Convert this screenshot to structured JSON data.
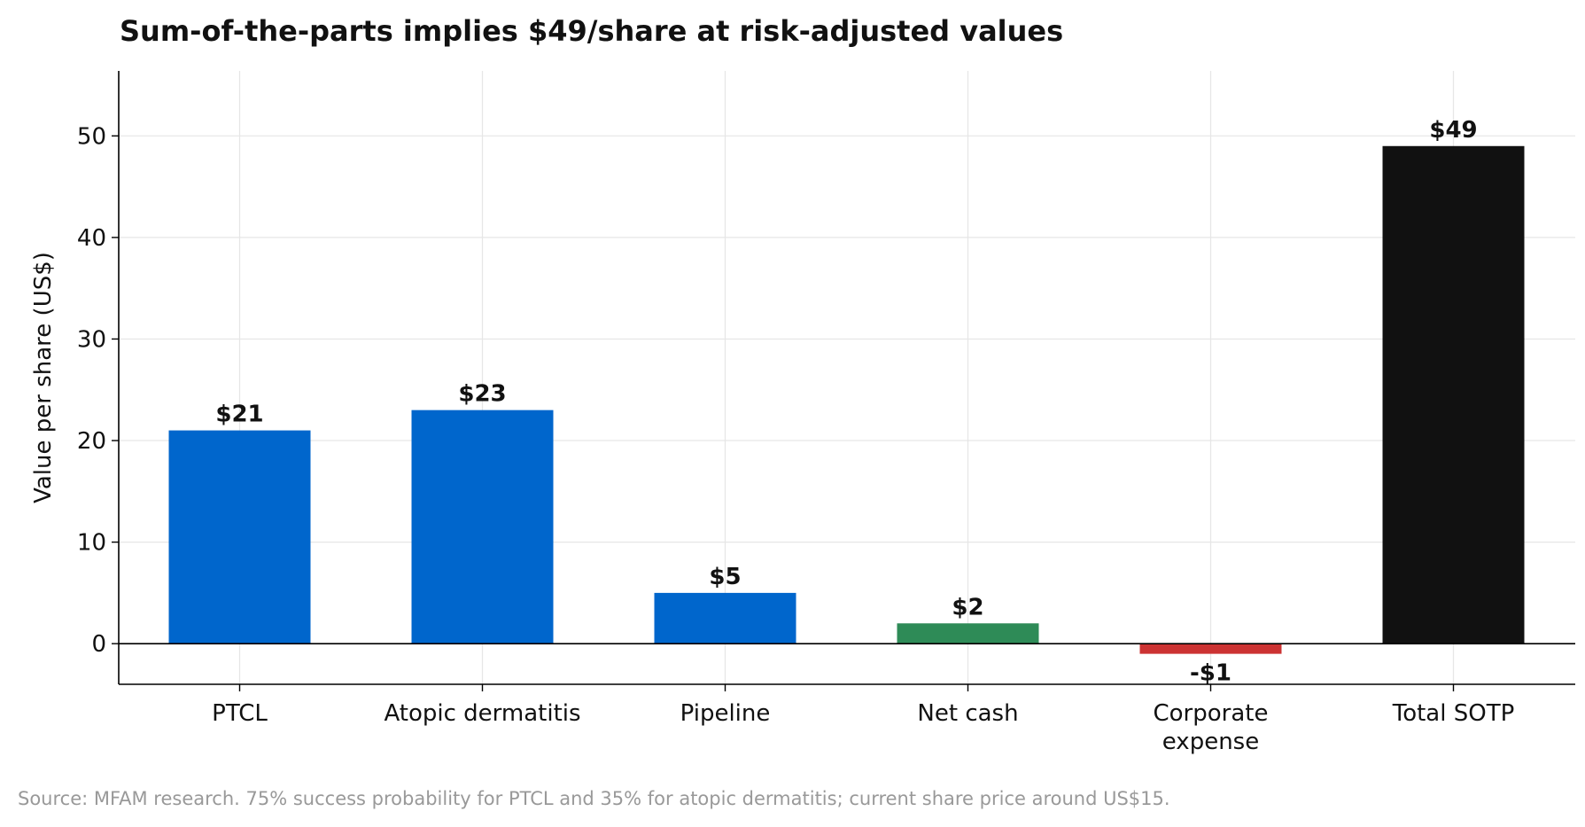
{
  "chart_data": {
    "type": "bar",
    "title": "Sum-of-the-parts implies $49/share at risk-adjusted values",
    "xlabel": "",
    "ylabel": "Value per share (US$)",
    "categories": [
      "PTCL",
      "Atopic dermatitis",
      "Pipeline",
      "Net cash",
      "Corporate expense",
      "Total SOTP"
    ],
    "category_lines": [
      [
        "PTCL"
      ],
      [
        "Atopic dermatitis"
      ],
      [
        "Pipeline"
      ],
      [
        "Net cash"
      ],
      [
        "Corporate",
        "expense"
      ],
      [
        "Total SOTP"
      ]
    ],
    "values": [
      21,
      23,
      5,
      2,
      -1,
      49
    ],
    "data_labels": [
      "$21",
      "$23",
      "$5",
      "$2",
      "-$1",
      "$49"
    ],
    "colors": [
      "#0066cc",
      "#0066cc",
      "#0066cc",
      "#2e8b57",
      "#cc3333",
      "#111111"
    ],
    "ylim": [
      -4,
      56.4
    ],
    "yticks": [
      0,
      10,
      20,
      30,
      40,
      50
    ],
    "grid": true,
    "footnote": "Source: MFAM research. 75% success probability for PTCL and 35% for atopic dermatitis; current share price around US$15."
  }
}
